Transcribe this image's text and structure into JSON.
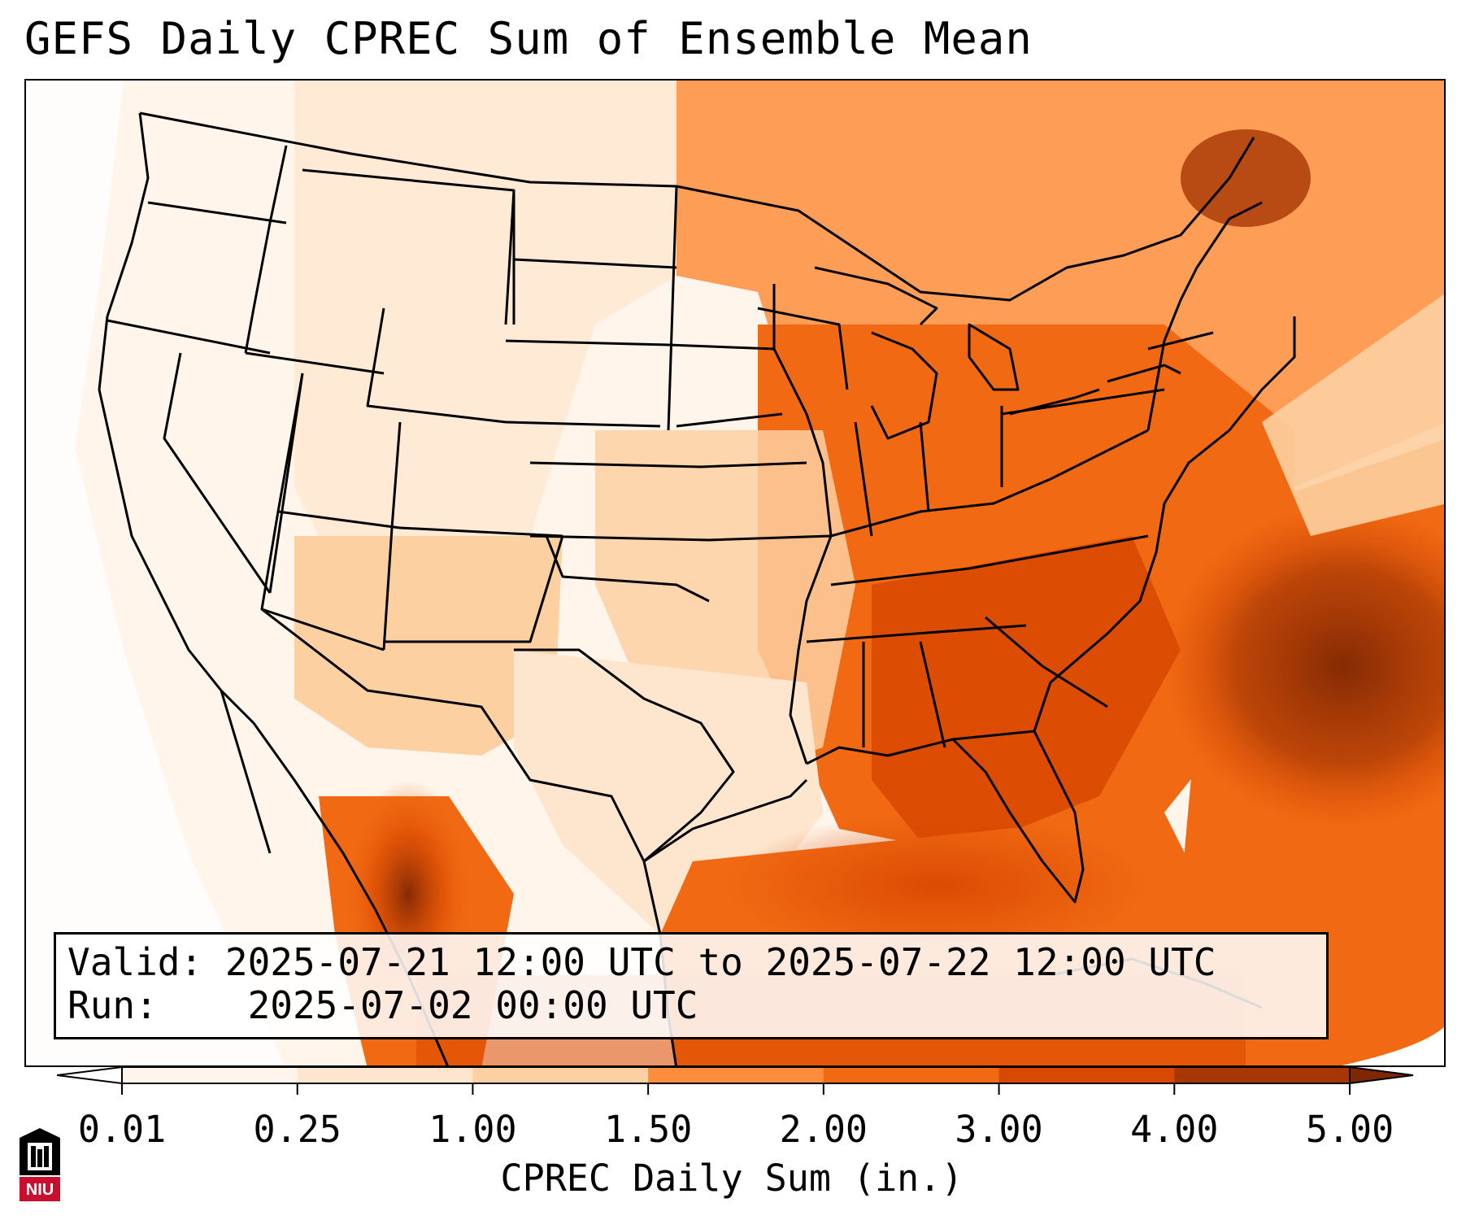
{
  "title": "GEFS Daily CPREC Sum of Ensemble Mean",
  "info": {
    "valid_label": "Valid:",
    "valid_value": "2025-07-21 12:00 UTC to 2025-07-22 12:00 UTC",
    "run_label": "Run:",
    "run_value": "2025-07-02 00:00 UTC"
  },
  "colorbar": {
    "label": "CPREC Daily Sum (in.)",
    "ticks": [
      "0.01",
      "0.25",
      "1.00",
      "1.50",
      "2.00",
      "3.00",
      "4.00",
      "5.00"
    ],
    "colors": [
      "#fff5eb",
      "#fee6ce",
      "#fdd0a2",
      "#fd8d3c",
      "#f16913",
      "#d94801",
      "#a63603"
    ],
    "under_color": "#ffffff",
    "over_color": "#7f2704",
    "extend": "both"
  },
  "map": {
    "region": "Continental United States, northern Mexico, Gulf of Mexico",
    "projection": "Lambert conformal",
    "borders": "state, national, coastlines"
  },
  "logo": {
    "text": "NIU",
    "icon": "niu-university-logo-icon",
    "colors": [
      "#c8102e",
      "#000000"
    ]
  }
}
